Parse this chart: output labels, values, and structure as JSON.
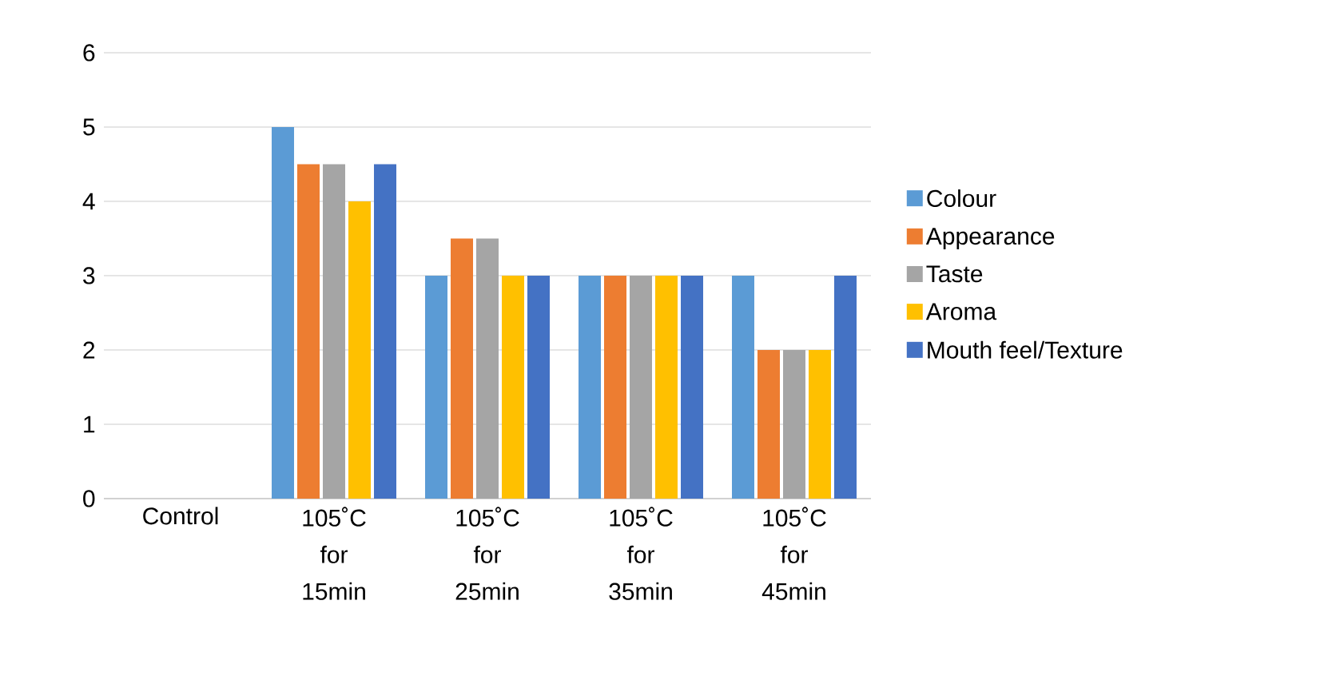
{
  "chart_data": {
    "type": "bar",
    "categories": [
      "Control",
      "105˚C for 15min",
      "105˚C for 25min",
      "105˚C for 35min",
      "105˚C for 45min"
    ],
    "series": [
      {
        "name": "Colour",
        "color": "#5b9bd5",
        "values": [
          0,
          5,
          3,
          3,
          3
        ]
      },
      {
        "name": "Appearance",
        "color": "#ed7d31",
        "values": [
          0,
          4.5,
          3.5,
          3,
          2
        ]
      },
      {
        "name": "Taste",
        "color": "#a5a5a5",
        "values": [
          0,
          4.5,
          3.5,
          3,
          2
        ]
      },
      {
        "name": "Aroma",
        "color": "#ffc000",
        "values": [
          0,
          4,
          3,
          3,
          2
        ]
      },
      {
        "name": "Mouth feel/Texture",
        "color": "#4472c4",
        "values": [
          0,
          4.5,
          3,
          3,
          3
        ]
      }
    ],
    "ylim": [
      0,
      6
    ],
    "yticks": [
      0,
      1,
      2,
      3,
      4,
      5,
      6
    ],
    "grid": "y",
    "legend": "right"
  }
}
